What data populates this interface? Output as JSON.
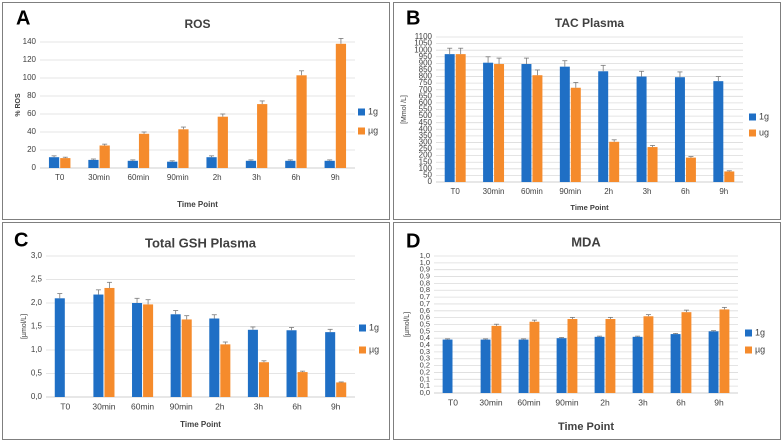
{
  "colors": {
    "series_1g": "#1f6fc5",
    "series_ug": "#f58b2c",
    "grid": "#dcdcdc",
    "axis": "#bfbfbf",
    "text": "#404040",
    "border": "#7f7f7f"
  },
  "chart_data": [
    {
      "panel_letter": "A",
      "type": "bar",
      "title": "ROS",
      "xlabel": "Time Point",
      "ylabel": "% ROS",
      "ylim": [
        0,
        140
      ],
      "yticks": [
        "0",
        "20",
        "40",
        "60",
        "80",
        "100",
        "120",
        "140"
      ],
      "categories": [
        "T0",
        "30min",
        "60min",
        "90min",
        "2h",
        "3h",
        "6h",
        "9h"
      ],
      "series": [
        {
          "name": "1g",
          "values": [
            12,
            9,
            8,
            7,
            12,
            8,
            8,
            8
          ],
          "errors": [
            1.5,
            1,
            1,
            1,
            1.5,
            1,
            1,
            1
          ]
        },
        {
          "name": "µg",
          "values": [
            11,
            25,
            38,
            43,
            57,
            71,
            103,
            138
          ],
          "errors": [
            1,
            1.5,
            2,
            2.5,
            3,
            3.5,
            5,
            6
          ]
        }
      ],
      "grid": true,
      "legend": "right"
    },
    {
      "panel_letter": "B",
      "type": "bar",
      "title": "TAC Plasma",
      "xlabel": "Time Point",
      "ylabel": "[Mmol /L]",
      "ylim": [
        0,
        1100
      ],
      "yticks": [
        "0",
        "50",
        "100",
        "150",
        "200",
        "250",
        "300",
        "350",
        "400",
        "450",
        "500",
        "550",
        "600",
        "650",
        "700",
        "750",
        "800",
        "850",
        "900",
        "950",
        "1000",
        "1050",
        "1100"
      ],
      "categories": [
        "T0",
        "30min",
        "60min",
        "90min",
        "2h",
        "3h",
        "6h",
        "9h"
      ],
      "series": [
        {
          "name": "1g",
          "values": [
            970,
            905,
            895,
            875,
            840,
            800,
            795,
            765
          ],
          "errors": [
            45,
            45,
            45,
            45,
            45,
            40,
            40,
            35
          ]
        },
        {
          "name": "ug",
          "values": [
            970,
            895,
            810,
            715,
            305,
            265,
            185,
            80
          ],
          "errors": [
            45,
            45,
            40,
            40,
            15,
            12,
            8,
            5
          ]
        }
      ],
      "grid": true,
      "legend": "right"
    },
    {
      "panel_letter": "C",
      "type": "bar",
      "title": "Total GSH Plasma",
      "xlabel": "Time Point",
      "ylabel": "[µmol/L]",
      "ylim": [
        0,
        3
      ],
      "yticks": [
        "0,0",
        "0,5",
        "1,0",
        "1,5",
        "2,0",
        "2,5",
        "3,0"
      ],
      "categories": [
        "T0",
        "30min",
        "60min",
        "90min",
        "2h",
        "3h",
        "6h",
        "9h"
      ],
      "series": [
        {
          "name": "1g",
          "values": [
            2.1,
            2.18,
            2.0,
            1.76,
            1.67,
            1.43,
            1.42,
            1.38
          ],
          "errors": [
            0.1,
            0.1,
            0.1,
            0.08,
            0.08,
            0.06,
            0.06,
            0.06
          ]
        },
        {
          "name": "µg",
          "values": [
            null,
            2.32,
            1.97,
            1.65,
            1.12,
            0.74,
            0.53,
            0.31
          ],
          "errors": [
            0,
            0.12,
            0.1,
            0.08,
            0.05,
            0.03,
            0.02,
            0.01
          ]
        }
      ],
      "grid": true,
      "legend": "right"
    },
    {
      "panel_letter": "D",
      "type": "bar",
      "title": "MDA",
      "xlabel": "Time Point",
      "ylabel": "[µmol/L]",
      "ylim": [
        0,
        1
      ],
      "yticks": [
        "0,0",
        "0,1",
        "0,1",
        "0,2",
        "0,2",
        "0,3",
        "0,3",
        "0,4",
        "0,4",
        "0,5",
        "0,5",
        "0,6",
        "0,6",
        "0,7",
        "0,7",
        "0,8",
        "0,8",
        "0,9",
        "0,9",
        "1,0",
        "1,0"
      ],
      "categories": [
        "T0",
        "30min",
        "60min",
        "90min",
        "2h",
        "3h",
        "6h",
        "9h"
      ],
      "series": [
        {
          "name": "1g",
          "values": [
            0.39,
            0.39,
            0.39,
            0.4,
            0.41,
            0.41,
            0.43,
            0.45
          ],
          "errors": [
            0.005,
            0.005,
            0.005,
            0.005,
            0.005,
            0.005,
            0.005,
            0.005
          ]
        },
        {
          "name": "µg",
          "values": [
            null,
            0.49,
            0.52,
            0.54,
            0.54,
            0.56,
            0.59,
            0.61
          ],
          "errors": [
            0,
            0.012,
            0.012,
            0.012,
            0.012,
            0.012,
            0.015,
            0.015
          ]
        }
      ],
      "grid": true,
      "legend": "right"
    }
  ]
}
